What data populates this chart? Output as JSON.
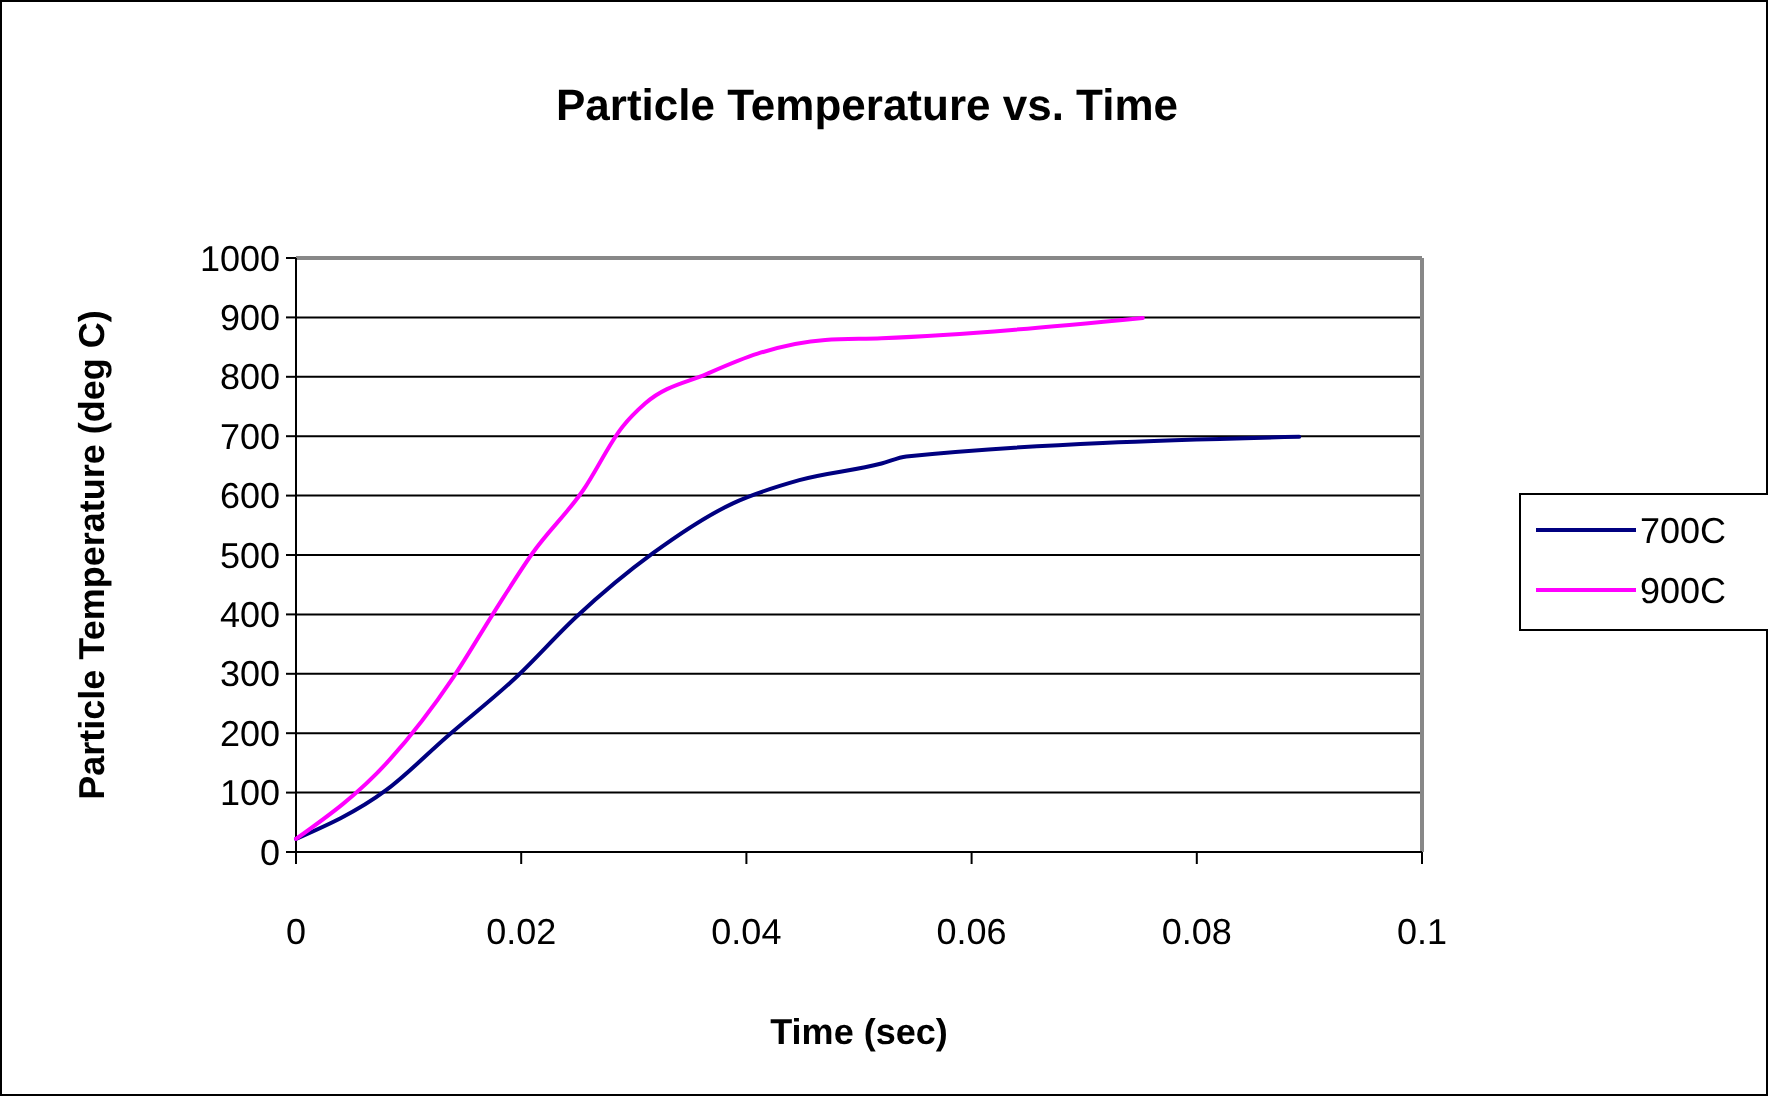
{
  "chart_data": {
    "type": "line",
    "title": "Particle Temperature vs. Time",
    "xlabel": "Time (sec)",
    "ylabel": "Particle Temperature (deg C)",
    "xlim": [
      0,
      0.1
    ],
    "xticks": [
      0,
      0.02,
      0.04,
      0.06,
      0.08,
      0.1
    ],
    "ylim": [
      0,
      1000
    ],
    "yticks": [
      0,
      100,
      200,
      300,
      400,
      500,
      600,
      700,
      800,
      900,
      1000
    ],
    "grid": "y",
    "legend": "right",
    "marker": "none",
    "line_style": "solid",
    "series": [
      {
        "name": "700C",
        "color": "#000080",
        "x": [
          0,
          0.008,
          0.0134,
          0.0196,
          0.0249,
          0.0317,
          0.0388,
          0.0447,
          0.052,
          0.0542,
          0.0891
        ],
        "values": [
          22,
          104,
          194,
          295,
          396,
          503,
          587,
          626,
          654,
          666,
          699
        ]
      },
      {
        "name": "900C",
        "color": "#ff00ff",
        "x": [
          0,
          0.0083,
          0.014,
          0.0175,
          0.021,
          0.0255,
          0.029,
          0.031,
          0.0365,
          0.041,
          0.047,
          0.052,
          0.0752
        ],
        "values": [
          22,
          155,
          295,
          401,
          503,
          609,
          716,
          755,
          805,
          839,
          862,
          865,
          899
        ]
      }
    ]
  }
}
